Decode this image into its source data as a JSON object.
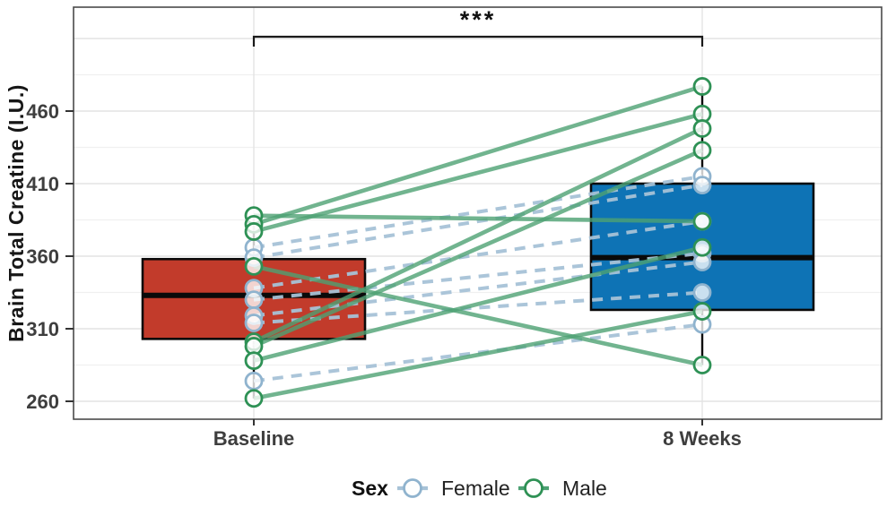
{
  "chart_data": {
    "type": "paired_boxplot_with_subject_lines",
    "title": "",
    "ylabel": "Brain Total Creatine (I.U.)",
    "xlabel": "",
    "categories": [
      "Baseline",
      "8 Weeks"
    ],
    "y_ticks": [
      260,
      310,
      360,
      410,
      460
    ],
    "y_major_gridlines": [
      260,
      310,
      360,
      410,
      460,
      510
    ],
    "y_minor_gridlines": [
      285,
      335,
      385,
      435,
      485
    ],
    "ylim": [
      247,
      532
    ],
    "grid": "on",
    "significance_label": "***",
    "colors": {
      "panel_border": "#4a4a4a",
      "gridline_major": "#e3e3e3",
      "gridline_minor": "#f0f0f0",
      "box_border": "#0a0a0a",
      "median": "#0a0a0a",
      "whisker": "#0a0a0a",
      "bracket": "#1a1a1a",
      "point_fill": "rgba(255,255,255,0.78)",
      "baseline_box_fill": "#c23b2b",
      "week8_box_fill": "#0e73b5"
    },
    "boxes": [
      {
        "category": "Baseline",
        "fill": "#c23b2b",
        "whisker_low": 262,
        "q1": 303,
        "median": 333,
        "q3": 358,
        "whisker_high": 388
      },
      {
        "category": "8 Weeks",
        "fill": "#0e73b5",
        "whisker_low": 285,
        "q1": 323,
        "median": 359,
        "q3": 410,
        "whisker_high": 477
      }
    ],
    "series": [
      {
        "name": "Female",
        "line_style": "dashed",
        "line_color": "#a7c2d7",
        "point_stroke": "#8fb3ce",
        "pairs": [
          [
            366,
            415
          ],
          [
            359,
            409
          ],
          [
            338,
            384
          ],
          [
            330,
            362
          ],
          [
            319,
            356
          ],
          [
            314,
            335
          ],
          [
            274,
            313
          ]
        ]
      },
      {
        "name": "Male",
        "line_style": "solid",
        "line_color": "#4da173",
        "point_stroke": "#2e9155",
        "pairs": [
          [
            388,
            384
          ],
          [
            382,
            477
          ],
          [
            377,
            458
          ],
          [
            353,
            285
          ],
          [
            301,
            448
          ],
          [
            298,
            433
          ],
          [
            288,
            366
          ],
          [
            262,
            322
          ]
        ]
      }
    ],
    "legend": {
      "title": "Sex",
      "entries": [
        "Female",
        "Male"
      ],
      "position": "bottom-center"
    }
  }
}
